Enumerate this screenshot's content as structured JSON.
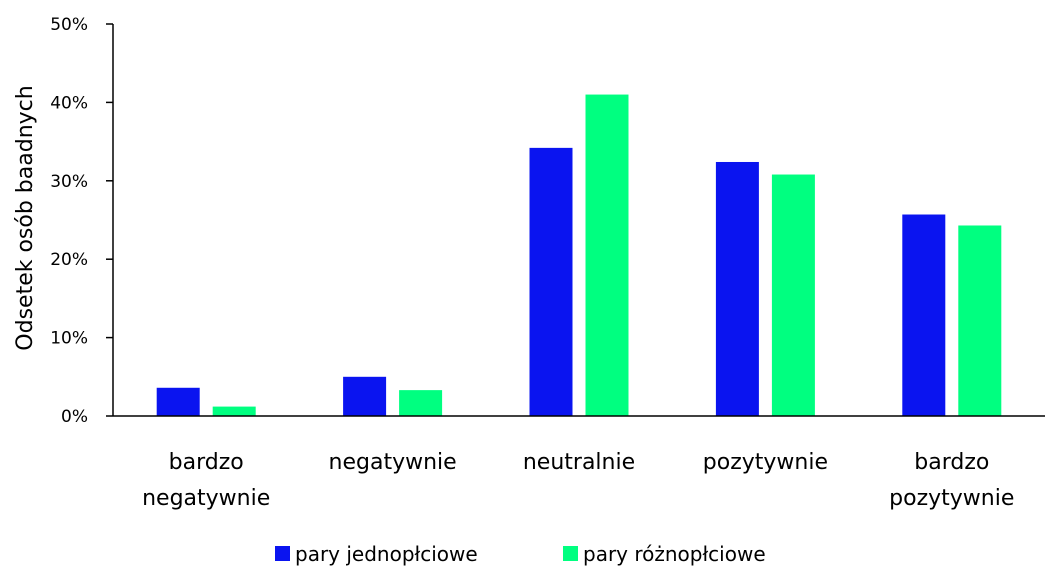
{
  "chart_data": {
    "type": "bar",
    "categories": [
      [
        "bardzo",
        "negatywnie"
      ],
      [
        "negatywnie"
      ],
      [
        "neutralnie"
      ],
      [
        "pozytywnie"
      ],
      [
        "bardzo",
        "pozytywnie"
      ]
    ],
    "series": [
      {
        "name": "pary jednopłciowe",
        "color": "#0a14f0",
        "values": [
          3.6,
          5.0,
          34.2,
          32.4,
          25.7
        ]
      },
      {
        "name": "pary różnopłciowe",
        "color": "#00ff80",
        "values": [
          1.2,
          3.3,
          41.0,
          30.8,
          24.3
        ]
      }
    ],
    "title": "",
    "xlabel": "",
    "ylabel": "Odsetek osób baadnych",
    "ylim": [
      0,
      50
    ],
    "yticks": [
      0,
      10,
      20,
      30,
      40,
      50
    ],
    "ytick_labels": [
      "0%",
      "10%",
      "20%",
      "30%",
      "40%",
      "50%"
    ],
    "grid": false,
    "legend_position": "bottom"
  }
}
